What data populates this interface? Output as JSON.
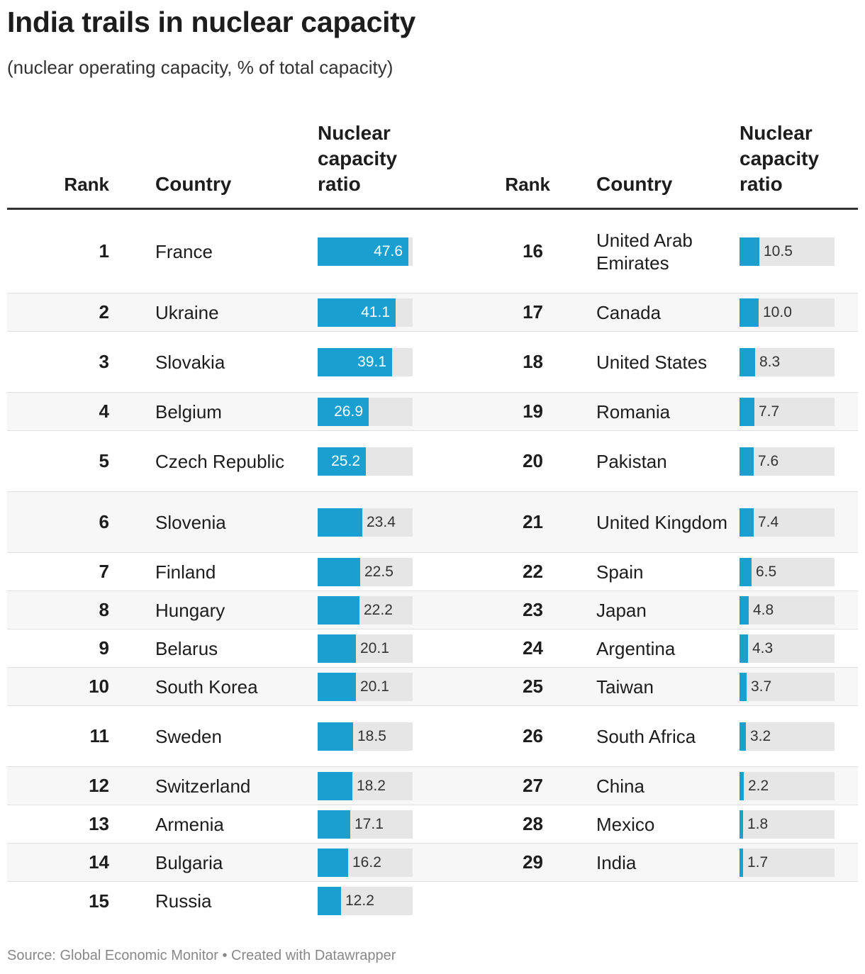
{
  "title": "India trails in nuclear capacity",
  "subtitle": "(nuclear operating capacity, % of total capacity)",
  "headers": {
    "rank": "Rank",
    "country": "Country",
    "ratio_l1": "Nuclear",
    "ratio_l2": "capacity",
    "ratio_l3": "ratio"
  },
  "footer": "Source: Global Economic Monitor • Created with Datawrapper",
  "colors": {
    "bar": "#1aa0d0",
    "bar_bg": "#e6e6e6",
    "stripe": "#f7f7f7"
  },
  "chart_data": {
    "type": "table",
    "value_max": 50,
    "rows": [
      {
        "rank": "1",
        "country": "France",
        "value": 47.6
      },
      {
        "rank": "2",
        "country": "Ukraine",
        "value": 41.1
      },
      {
        "rank": "3",
        "country": "Slovakia",
        "value": 39.1
      },
      {
        "rank": "4",
        "country": "Belgium",
        "value": 26.9
      },
      {
        "rank": "5",
        "country": "Czech Republic",
        "value": 25.2
      },
      {
        "rank": "6",
        "country": "Slovenia",
        "value": 23.4
      },
      {
        "rank": "7",
        "country": "Finland",
        "value": 22.5
      },
      {
        "rank": "8",
        "country": "Hungary",
        "value": 22.2
      },
      {
        "rank": "9",
        "country": "Belarus",
        "value": 20.1
      },
      {
        "rank": "10",
        "country": "South Korea",
        "value": 20.1
      },
      {
        "rank": "11",
        "country": "Sweden",
        "value": 18.5
      },
      {
        "rank": "12",
        "country": "Switzerland",
        "value": 18.2
      },
      {
        "rank": "13",
        "country": "Armenia",
        "value": 17.1
      },
      {
        "rank": "14",
        "country": "Bulgaria",
        "value": 16.2
      },
      {
        "rank": "15",
        "country": "Russia",
        "value": 12.2
      },
      {
        "rank": "16",
        "country": "United Arab Emirates",
        "value": 10.5
      },
      {
        "rank": "17",
        "country": "Canada",
        "value": 10.0
      },
      {
        "rank": "18",
        "country": "United States",
        "value": 8.3
      },
      {
        "rank": "19",
        "country": "Romania",
        "value": 7.7
      },
      {
        "rank": "20",
        "country": "Pakistan",
        "value": 7.6
      },
      {
        "rank": "21",
        "country": "United Kingdom",
        "value": 7.4
      },
      {
        "rank": "22",
        "country": "Spain",
        "value": 6.5
      },
      {
        "rank": "23",
        "country": "Japan",
        "value": 4.8
      },
      {
        "rank": "24",
        "country": "Argentina",
        "value": 4.3
      },
      {
        "rank": "25",
        "country": "Taiwan",
        "value": 3.7
      },
      {
        "rank": "26",
        "country": "South Africa",
        "value": 3.2
      },
      {
        "rank": "27",
        "country": "China",
        "value": 2.2
      },
      {
        "rank": "28",
        "country": "Mexico",
        "value": 1.8
      },
      {
        "rank": "29",
        "country": "India",
        "value": 1.7
      }
    ]
  }
}
